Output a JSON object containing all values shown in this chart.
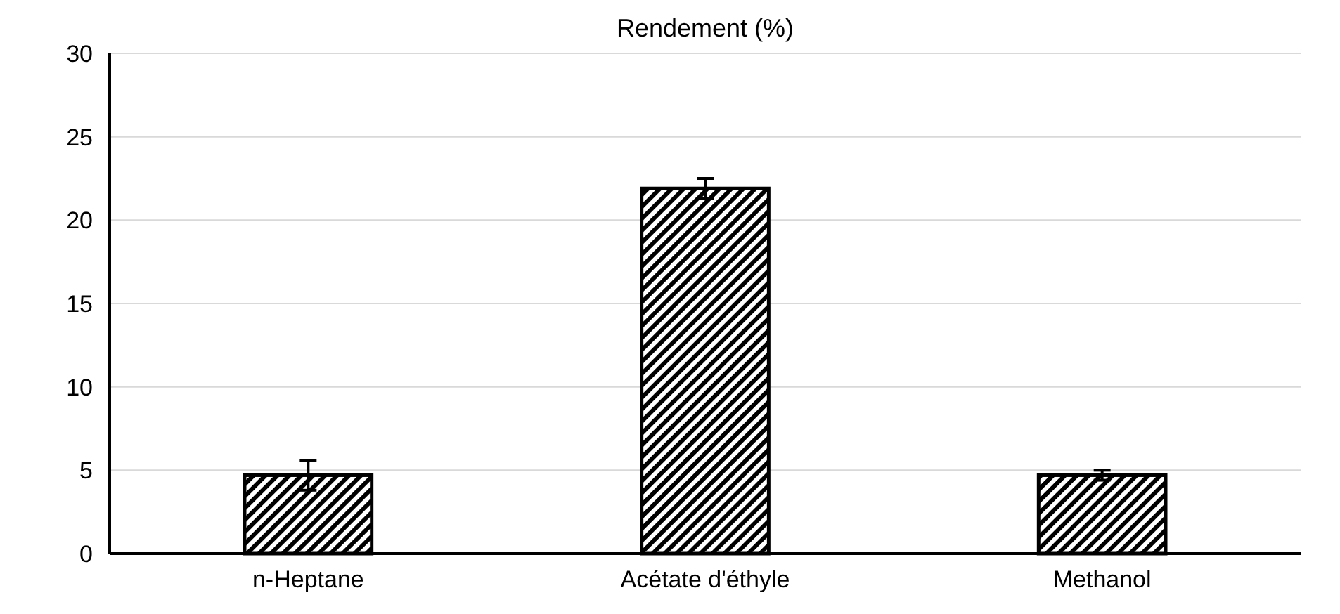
{
  "chart_data": {
    "type": "bar",
    "title": "Rendement (%)",
    "categories": [
      "n-Heptane",
      "Acétate d'éthyle",
      "Methanol"
    ],
    "values": [
      4.7,
      21.9,
      4.7
    ],
    "errors": [
      0.9,
      0.6,
      0.3
    ],
    "color": "#000000",
    "ylim": [
      0,
      30
    ],
    "yticks": [
      0,
      5,
      10,
      15,
      20,
      25,
      30
    ],
    "grid": "y"
  }
}
